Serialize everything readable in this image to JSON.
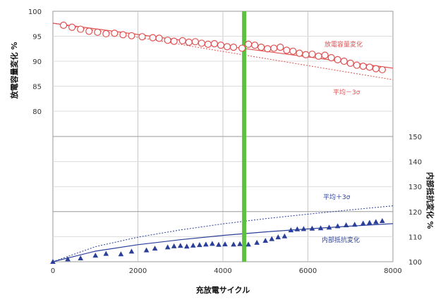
{
  "chart_data": {
    "type": "scatter",
    "title": "",
    "xlabel": "充放電サイクル",
    "y_left_label": "放電容量変化 %",
    "y_right_label": "内部抵抗変化 %",
    "xlim": [
      0,
      8000
    ],
    "x_ticks": [
      "0",
      "2000",
      "4000",
      "6000",
      "8000"
    ],
    "y_left_ticks": [
      "100",
      "95",
      "90",
      "85",
      "80"
    ],
    "y_right_ticks": [
      "150",
      "140",
      "130",
      "120",
      "110",
      "100"
    ],
    "grid": true,
    "marker_line_x": 4500,
    "marker_line_color": "#5cc040",
    "colors": {
      "capacity": "#e05050",
      "resistance": "#2a3f9a"
    },
    "annotations": {
      "capacity": "放電容量変化",
      "capacity_limit": "平均－3σ",
      "resistance_limit": "平均＋3σ",
      "resistance": "内部抵抗変化"
    },
    "capacity_points": [
      [
        250,
        97.2
      ],
      [
        450,
        96.8
      ],
      [
        650,
        96.4
      ],
      [
        850,
        96.0
      ],
      [
        1050,
        95.8
      ],
      [
        1250,
        95.5
      ],
      [
        1450,
        95.6
      ],
      [
        1650,
        95.3
      ],
      [
        1850,
        95.1
      ],
      [
        2100,
        94.9
      ],
      [
        2350,
        94.7
      ],
      [
        2500,
        94.6
      ],
      [
        2700,
        94.2
      ],
      [
        2850,
        94.0
      ],
      [
        3050,
        94.1
      ],
      [
        3200,
        93.8
      ],
      [
        3350,
        93.9
      ],
      [
        3500,
        93.6
      ],
      [
        3650,
        93.4
      ],
      [
        3800,
        93.5
      ],
      [
        3950,
        93.2
      ],
      [
        4100,
        92.9
      ],
      [
        4250,
        92.8
      ],
      [
        4450,
        92.6
      ],
      [
        4600,
        93.4
      ],
      [
        4750,
        93.2
      ],
      [
        4900,
        92.8
      ],
      [
        5050,
        92.5
      ],
      [
        5200,
        92.6
      ],
      [
        5350,
        92.8
      ],
      [
        5500,
        92.2
      ],
      [
        5650,
        92.0
      ],
      [
        5800,
        91.6
      ],
      [
        5950,
        91.3
      ],
      [
        6100,
        91.4
      ],
      [
        6250,
        91.0
      ],
      [
        6400,
        91.2
      ],
      [
        6550,
        90.7
      ],
      [
        6700,
        90.3
      ],
      [
        6850,
        90.0
      ],
      [
        7000,
        89.6
      ],
      [
        7150,
        89.2
      ],
      [
        7300,
        89.0
      ],
      [
        7450,
        88.8
      ],
      [
        7600,
        88.5
      ],
      [
        7750,
        88.3
      ]
    ],
    "resistance_points": [
      [
        0,
        100.0
      ],
      [
        350,
        101.0
      ],
      [
        650,
        101.4
      ],
      [
        1000,
        102.5
      ],
      [
        1250,
        103.2
      ],
      [
        1600,
        103.0
      ],
      [
        1850,
        104.1
      ],
      [
        2200,
        104.6
      ],
      [
        2400,
        105.3
      ],
      [
        2700,
        105.8
      ],
      [
        2850,
        106.2
      ],
      [
        3000,
        106.4
      ],
      [
        3150,
        106.1
      ],
      [
        3300,
        106.5
      ],
      [
        3450,
        106.7
      ],
      [
        3600,
        106.9
      ],
      [
        3750,
        107.2
      ],
      [
        3900,
        106.8
      ],
      [
        4050,
        107.0
      ],
      [
        4250,
        106.9
      ],
      [
        4400,
        107.1
      ],
      [
        4600,
        106.9
      ],
      [
        4800,
        107.6
      ],
      [
        5000,
        108.4
      ],
      [
        5150,
        109.1
      ],
      [
        5300,
        109.8
      ],
      [
        5450,
        110.2
      ],
      [
        5600,
        112.6
      ],
      [
        5750,
        113.0
      ],
      [
        5900,
        113.1
      ],
      [
        6100,
        113.3
      ],
      [
        6300,
        113.4
      ],
      [
        6500,
        113.7
      ],
      [
        6700,
        114.2
      ],
      [
        6900,
        114.6
      ],
      [
        7100,
        114.8
      ],
      [
        7300,
        115.3
      ],
      [
        7450,
        115.6
      ],
      [
        7600,
        115.9
      ],
      [
        7750,
        116.3
      ]
    ],
    "capacity_trend": [
      [
        0,
        97.6
      ],
      [
        8000,
        88.6
      ]
    ],
    "capacity_limit_line": [
      [
        0,
        97.6
      ],
      [
        8000,
        86.3
      ]
    ],
    "resistance_trend": [
      [
        0,
        100.0
      ],
      [
        1000,
        104.2
      ],
      [
        2000,
        106.8
      ],
      [
        3000,
        108.8
      ],
      [
        4000,
        110.5
      ],
      [
        5000,
        111.9
      ],
      [
        6000,
        113.1
      ],
      [
        7000,
        114.2
      ],
      [
        8000,
        115.2
      ]
    ],
    "resistance_limit_line": [
      [
        0,
        100.0
      ],
      [
        1000,
        106.0
      ],
      [
        2000,
        109.8
      ],
      [
        3000,
        112.7
      ],
      [
        4000,
        115.1
      ],
      [
        5000,
        117.2
      ],
      [
        6000,
        119.0
      ],
      [
        7000,
        120.7
      ],
      [
        8000,
        122.3
      ]
    ]
  }
}
